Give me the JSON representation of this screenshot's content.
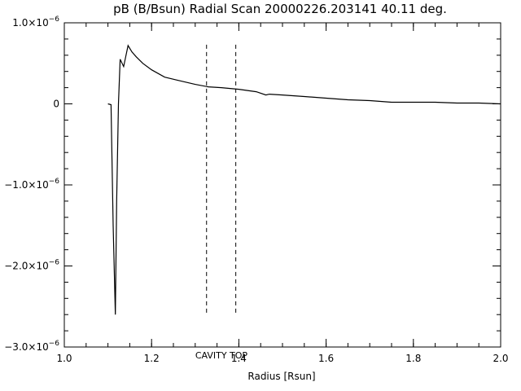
{
  "chart_data": {
    "type": "line",
    "title": "pB (B/Bsun) Radial Scan 20000226.203141 40.11 deg.",
    "xlabel": "Radius [Rsun]",
    "ylabel": "",
    "xlim": [
      1.0,
      2.0
    ],
    "ylim": [
      -3e-06,
      1e-06
    ],
    "grid": false,
    "x_ticks": [
      {
        "value": 1.0,
        "label": "1.0"
      },
      {
        "value": 1.2,
        "label": "1.2"
      },
      {
        "value": 1.4,
        "label": "1.4"
      },
      {
        "value": 1.6,
        "label": "1.6"
      },
      {
        "value": 1.8,
        "label": "1.8"
      },
      {
        "value": 2.0,
        "label": "2.0"
      }
    ],
    "y_ticks": [
      {
        "value": 1e-06,
        "mantissa": "1.0×10",
        "exp": "−6"
      },
      {
        "value": 0,
        "mantissa": "0",
        "exp": ""
      },
      {
        "value": -1e-06,
        "mantissa": "−1.0×10",
        "exp": "−6"
      },
      {
        "value": -2e-06,
        "mantissa": "−2.0×10",
        "exp": "−6"
      },
      {
        "value": -3e-06,
        "mantissa": "−3.0×10",
        "exp": "−6"
      }
    ],
    "series": [
      {
        "points": [
          [
            1.1,
            0.0
          ],
          [
            1.107,
            -1e-08
          ],
          [
            1.108,
            -3e-07
          ],
          [
            1.112,
            -1.5e-06
          ],
          [
            1.117,
            -2.6e-06
          ],
          [
            1.12,
            -1.2e-06
          ],
          [
            1.124,
            0.0
          ],
          [
            1.128,
            5.5e-07
          ],
          [
            1.136,
            4.6e-07
          ],
          [
            1.146,
            7.2e-07
          ],
          [
            1.155,
            6.4e-07
          ],
          [
            1.165,
            5.8e-07
          ],
          [
            1.18,
            5e-07
          ],
          [
            1.2,
            4.2e-07
          ],
          [
            1.23,
            3.3e-07
          ],
          [
            1.26,
            2.9e-07
          ],
          [
            1.3,
            2.4e-07
          ],
          [
            1.33,
            2.1e-07
          ],
          [
            1.36,
            2e-07
          ],
          [
            1.4,
            1.8e-07
          ],
          [
            1.44,
            1.5e-07
          ],
          [
            1.462,
            1.1e-07
          ],
          [
            1.47,
            1.2e-07
          ],
          [
            1.5,
            1.1e-07
          ],
          [
            1.55,
            9e-08
          ],
          [
            1.6,
            7e-08
          ],
          [
            1.65,
            5e-08
          ],
          [
            1.7,
            4e-08
          ],
          [
            1.75,
            2e-08
          ],
          [
            1.8,
            2e-08
          ],
          [
            1.85,
            2e-08
          ],
          [
            1.9,
            1e-08
          ],
          [
            1.95,
            1e-08
          ],
          [
            2.0,
            0.0
          ]
        ]
      }
    ],
    "markers": [
      {
        "x": 1.326,
        "ymin": -2.6e-06,
        "ymax": 7.3e-07,
        "style": "dashed"
      },
      {
        "x": 1.393,
        "ymin": -2.6e-06,
        "ymax": 7.3e-07,
        "style": "dashed"
      }
    ],
    "annotation": {
      "text": "CAVITY TOP",
      "x": 1.36,
      "color": "#cc0000"
    }
  }
}
